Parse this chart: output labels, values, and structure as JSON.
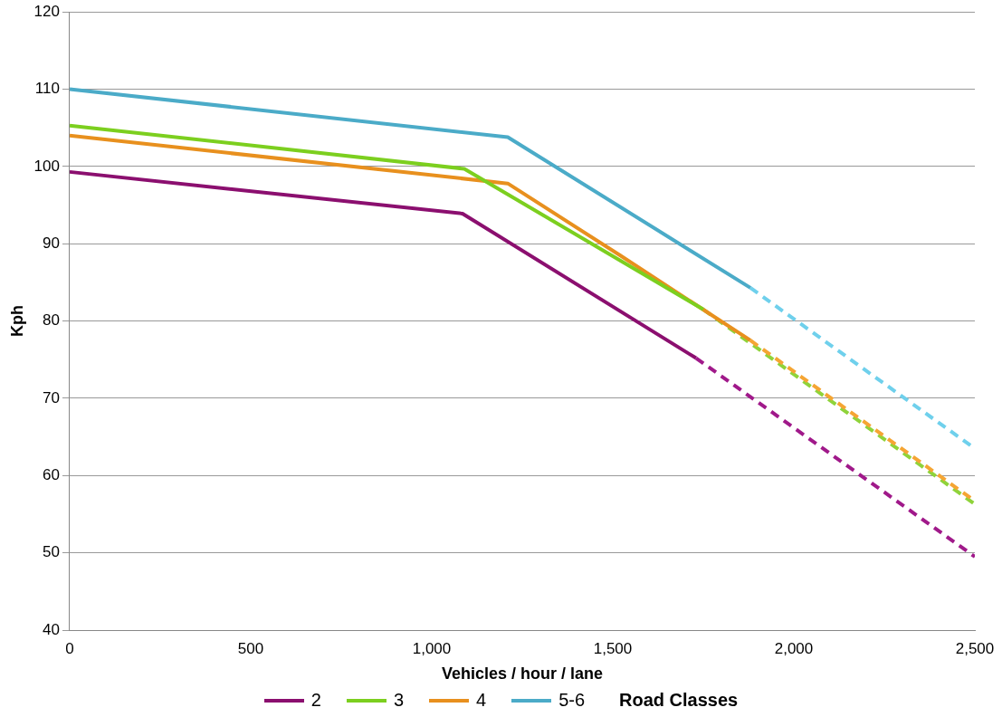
{
  "chart_data": {
    "type": "line",
    "xlabel": "Vehicles / hour / lane",
    "ylabel": "Kph",
    "legend_title": "Road Classes",
    "legend": "bottom",
    "grid": "y",
    "marker": "none",
    "xlim": [
      0,
      2500
    ],
    "xticks": [
      0,
      500,
      {
        "value": 1000,
        "label": "1,000"
      },
      {
        "value": 1500,
        "label": "1,500"
      },
      {
        "value": 2000,
        "label": "2,000"
      },
      {
        "value": 2500,
        "label": "2,500"
      }
    ],
    "ylim": [
      40,
      120
    ],
    "yticks": [
      40,
      50,
      60,
      70,
      80,
      90,
      100,
      110,
      120
    ],
    "series": [
      {
        "name": "2",
        "color": "#8b0f6f",
        "x": [
          0,
          1085,
          1730
        ],
        "values": [
          99.3,
          93.9,
          75.2
        ]
      },
      {
        "name": "3",
        "color": "#7ccf1f",
        "x": [
          0,
          1090,
          1750
        ],
        "values": [
          105.3,
          99.7,
          81.5
        ]
      },
      {
        "name": "4",
        "color": "#e8901e",
        "x": [
          0,
          1210,
          1520,
          1880
        ],
        "values": [
          104,
          97.8,
          88.5,
          77.5
        ]
      },
      {
        "name": "5-6",
        "color": "#4babc8",
        "x": [
          0,
          1210,
          1880
        ],
        "values": [
          110,
          103.8,
          84.3
        ]
      },
      {
        "color": "#a0198a",
        "line_style": "dashed",
        "x": [
          1730,
          2500
        ],
        "values": [
          75.2,
          49.5
        ]
      },
      {
        "color": "#f5a533",
        "line_style": "dashed",
        "x": [
          1880,
          2500
        ],
        "values": [
          77.5,
          56.7
        ]
      },
      {
        "color": "#8fd33a",
        "line_style": "dashed",
        "x": [
          1750,
          2500
        ],
        "values": [
          81.5,
          56.3
        ]
      },
      {
        "color": "#6fd0ec",
        "line_style": "dashed",
        "x": [
          1880,
          2500
        ],
        "values": [
          84.3,
          63.5
        ]
      }
    ]
  }
}
